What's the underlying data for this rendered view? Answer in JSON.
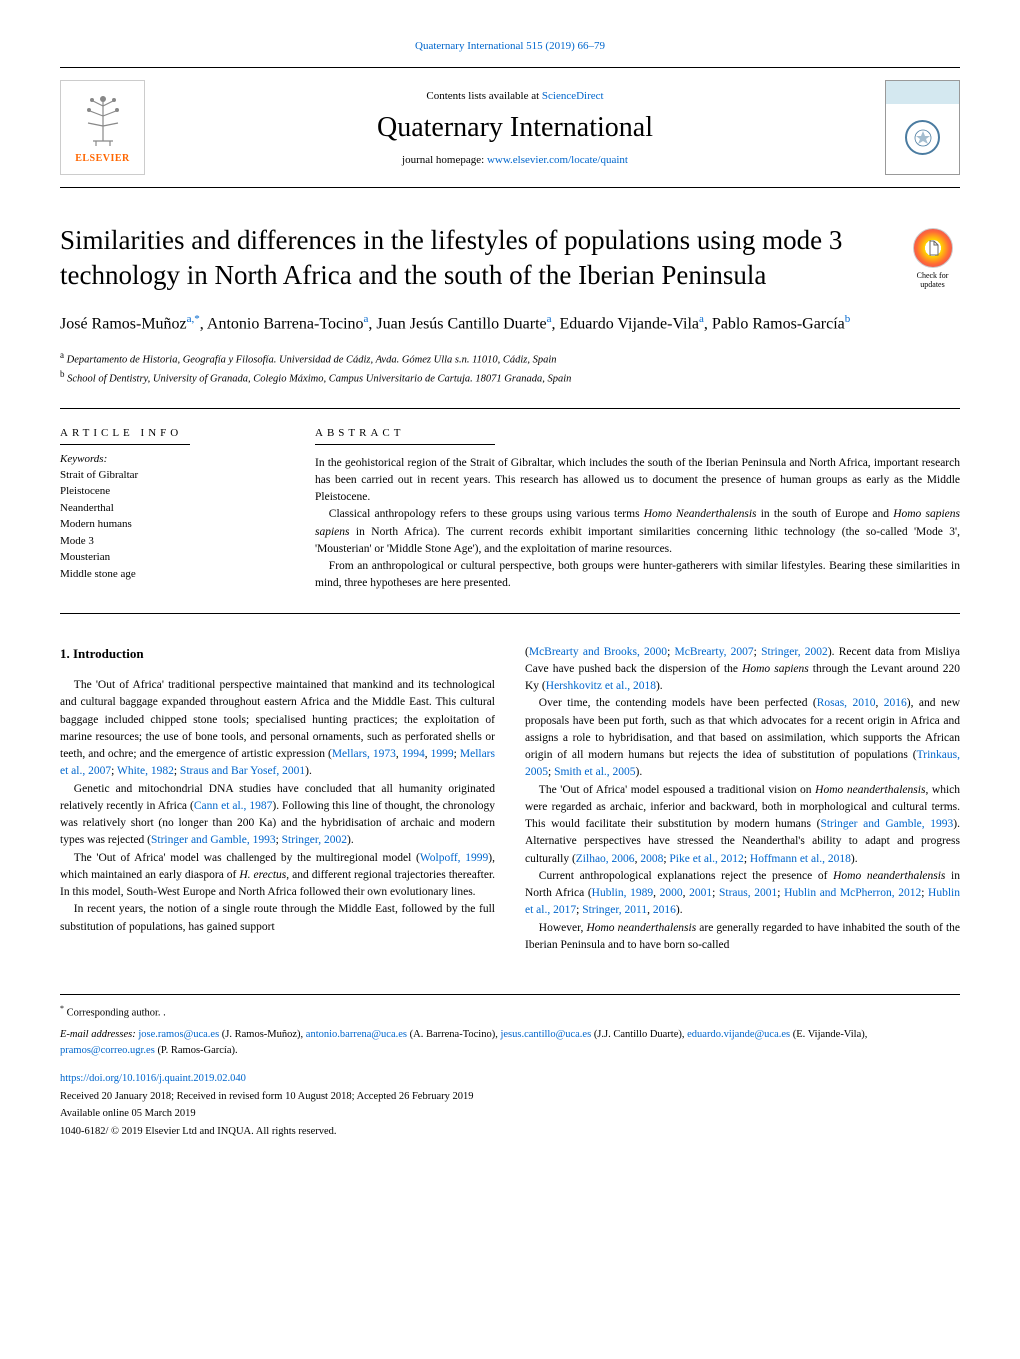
{
  "journalRef": "Quaternary International 515 (2019) 66–79",
  "header": {
    "contentsPrefix": "Contents lists available at ",
    "contentsLink": "ScienceDirect",
    "journalName": "Quaternary International",
    "homepagePrefix": "journal homepage: ",
    "homepageUrl": "www.elsevier.com/locate/quaint",
    "publisherName": "ELSEVIER"
  },
  "checkUpdates": {
    "line1": "Check for",
    "line2": "updates"
  },
  "title": "Similarities and differences in the lifestyles of populations using mode 3 technology in North Africa and the south of the Iberian Peninsula",
  "authors": [
    {
      "name": "José Ramos-Muñoz",
      "sup": "a,*"
    },
    {
      "name": "Antonio Barrena-Tocino",
      "sup": "a"
    },
    {
      "name": "Juan Jesús Cantillo Duarte",
      "sup": "a"
    },
    {
      "name": "Eduardo Vijande-Vila",
      "sup": "a"
    },
    {
      "name": "Pablo Ramos-García",
      "sup": "b"
    }
  ],
  "affiliations": [
    {
      "sup": "a",
      "text": "Departamento de Historia, Geografía y Filosofía. Universidad de Cádiz, Avda. Gómez Ulla s.n. 11010, Cádiz, Spain"
    },
    {
      "sup": "b",
      "text": "School of Dentistry, University of Granada, Colegio Máximo, Campus Universitario de Cartuja. 18071 Granada, Spain"
    }
  ],
  "articleInfo": {
    "label": "ARTICLE INFO",
    "keywordsLabel": "Keywords:",
    "keywords": [
      "Strait of Gibraltar",
      "Pleistocene",
      "Neanderthal",
      "Modern humans",
      "Mode 3",
      "Mousterian",
      "Middle stone age"
    ]
  },
  "abstract": {
    "label": "ABSTRACT",
    "paragraphs": [
      "In the geohistorical region of the Strait of Gibraltar, which includes the south of the Iberian Peninsula and North Africa, important research has been carried out in recent years. This research has allowed us to document the presence of human groups as early as the Middle Pleistocene.",
      "Classical anthropology refers to these groups using various terms <i>Homo Neanderthalensis</i> in the south of Europe and <i>Homo sapiens sapiens</i> in North Africa). The current records exhibit important similarities concerning lithic technology (the so-called 'Mode 3', 'Mousterian' or 'Middle Stone Age'), and the exploitation of marine resources.",
      "From an anthropological or cultural perspective, both groups were hunter-gatherers with similar lifestyles. Bearing these similarities in mind, three hypotheses are here presented."
    ]
  },
  "body": {
    "heading": "1. Introduction",
    "leftColumn": [
      "The 'Out of Africa' traditional perspective maintained that mankind and its technological and cultural baggage expanded throughout eastern Africa and the Middle East. This cultural baggage included chipped stone tools; specialised hunting practices; the exploitation of marine resources; the use of bone tools, and personal ornaments, such as perforated shells or teeth, and ochre; and the emergence of artistic expression (<span class=\"ref\">Mellars, 1973</span>, <span class=\"ref\">1994</span>, <span class=\"ref\">1999</span>; <span class=\"ref\">Mellars et al., 2007</span>; <span class=\"ref\">White, 1982</span>; <span class=\"ref\">Straus and Bar Yosef, 2001</span>).",
      "Genetic and mitochondrial DNA studies have concluded that all humanity originated relatively recently in Africa (<span class=\"ref\">Cann et al., 1987</span>). Following this line of thought, the chronology was relatively short (no longer than 200 Ka) and the hybridisation of archaic and modern types was rejected (<span class=\"ref\">Stringer and Gamble, 1993</span>; <span class=\"ref\">Stringer, 2002</span>).",
      "The 'Out of Africa' model was challenged by the multiregional model (<span class=\"ref\">Wolpoff, 1999</span>), which maintained an early diaspora of <span class=\"emph\">H. erectus</span>, and different regional trajectories thereafter. In this model, South-West Europe and North Africa followed their own evolutionary lines.",
      "In recent years, the notion of a single route through the Middle East, followed by the full substitution of populations, has gained support"
    ],
    "rightColumn": [
      "(<span class=\"ref\">McBrearty and Brooks, 2000</span>; <span class=\"ref\">McBrearty, 2007</span>; <span class=\"ref\">Stringer, 2002</span>). Recent data from Misliya Cave have pushed back the dispersion of the <span class=\"emph\">Homo sapiens</span> through the Levant around 220 Ky (<span class=\"ref\">Hershkovitz et al., 2018</span>).",
      "Over time, the contending models have been perfected (<span class=\"ref\">Rosas, 2010</span>, <span class=\"ref\">2016</span>), and new proposals have been put forth, such as that which advocates for a recent origin in Africa and assigns a role to hybridisation, and that based on assimilation, which supports the African origin of all modern humans but rejects the idea of substitution of populations (<span class=\"ref\">Trinkaus, 2005</span>; <span class=\"ref\">Smith et al., 2005</span>).",
      "The 'Out of Africa' model espoused a traditional vision on <span class=\"emph\">Homo neanderthalensis</span>, which were regarded as archaic, inferior and backward, both in morphological and cultural terms. This would facilitate their substitution by modern humans (<span class=\"ref\">Stringer and Gamble, 1993</span>). Alternative perspectives have stressed the Neanderthal's ability to adapt and progress culturally (<span class=\"ref\">Zilhao, 2006</span>, <span class=\"ref\">2008</span>; <span class=\"ref\">Pike et al., 2012</span>; <span class=\"ref\">Hoffmann et al., 2018</span>).",
      "Current anthropological explanations reject the presence of <span class=\"emph\">Homo neanderthalensis</span> in North Africa (<span class=\"ref\">Hublin, 1989</span>, <span class=\"ref\">2000</span>, <span class=\"ref\">2001</span>; <span class=\"ref\">Straus, 2001</span>; <span class=\"ref\">Hublin and McPherron, 2012</span>; <span class=\"ref\">Hublin et al., 2017</span>; <span class=\"ref\">Stringer, 2011</span>, <span class=\"ref\">2016</span>).",
      "However, <span class=\"emph\">Homo neanderthalensis</span> are generally regarded to have inhabited the south of the Iberian Peninsula and to have born so-called"
    ]
  },
  "footer": {
    "correspondingNote": "Corresponding author. .",
    "emailLabel": "E-mail addresses: ",
    "emails": [
      {
        "addr": "jose.ramos@uca.es",
        "name": "(J. Ramos-Muñoz)"
      },
      {
        "addr": "antonio.barrena@uca.es",
        "name": "(A. Barrena-Tocino)"
      },
      {
        "addr": "jesus.cantillo@uca.es",
        "name": "(J.J. Cantillo Duarte)"
      },
      {
        "addr": "eduardo.vijande@uca.es",
        "name": "(E. Vijande-Vila)"
      },
      {
        "addr": "pramos@correo.ugr.es",
        "name": "(P. Ramos-García)"
      }
    ],
    "doi": "https://doi.org/10.1016/j.quaint.2019.02.040",
    "received": "Received 20 January 2018; Received in revised form 10 August 2018; Accepted 26 February 2019",
    "available": "Available online 05 March 2019",
    "copyright": "1040-6182/ © 2019 Elsevier Ltd and INQUA. All rights reserved."
  }
}
